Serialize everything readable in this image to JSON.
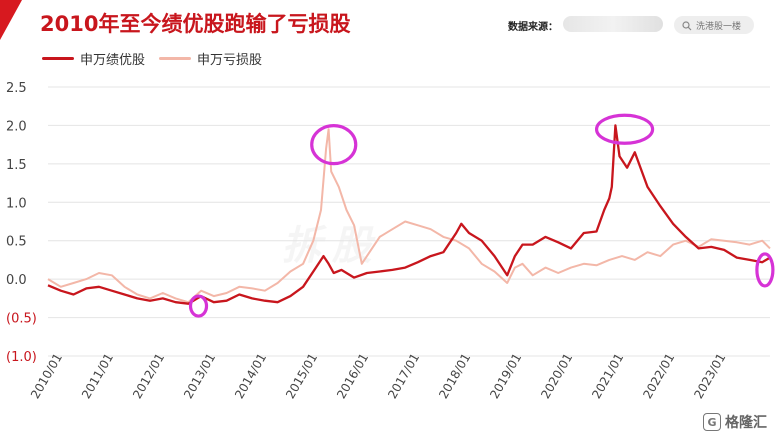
{
  "header": {
    "title": "2010年至今绩优股跑输了亏损股",
    "source_label": "数据来源：",
    "search_text": "洗港股一楼"
  },
  "brand": {
    "name": "格隆汇",
    "badge": "G"
  },
  "watermark": "拆股",
  "colors": {
    "accent": "#c8161d",
    "series1": "#c8161d",
    "series2": "#f3b7a8",
    "marker": "#d633d6"
  },
  "chart_data": {
    "type": "line",
    "title": "2010年至今绩优股跑输了亏损股",
    "xlabel": "",
    "ylabel": "",
    "ylim": [
      -1.0,
      2.5
    ],
    "yticks": [
      2.5,
      2.0,
      1.5,
      1.0,
      0.5,
      0.0,
      -0.5,
      -1.0
    ],
    "ytick_labels": [
      "2.5",
      "2.0",
      "1.5",
      "1.0",
      "0.5",
      "0.0",
      "(0.5)",
      "(1.0)"
    ],
    "xlim": [
      2010.0,
      2024.15
    ],
    "xticks": [
      "2010/01",
      "2011/01",
      "2012/01",
      "2013/01",
      "2014/01",
      "2015/01",
      "2016/01",
      "2017/01",
      "2018/01",
      "2019/01",
      "2020/01",
      "2021/01",
      "2022/01",
      "2023/01"
    ],
    "legend_position": "top-left",
    "grid": true,
    "series": [
      {
        "name": "申万绩优股",
        "x": [
          2010.0,
          2010.25,
          2010.5,
          2010.75,
          2011.0,
          2011.25,
          2011.5,
          2011.75,
          2012.0,
          2012.25,
          2012.5,
          2012.75,
          2013.0,
          2013.25,
          2013.5,
          2013.75,
          2014.0,
          2014.25,
          2014.5,
          2014.75,
          2015.0,
          2015.25,
          2015.4,
          2015.5,
          2015.6,
          2015.75,
          2016.0,
          2016.25,
          2016.5,
          2016.75,
          2017.0,
          2017.25,
          2017.5,
          2017.75,
          2018.0,
          2018.1,
          2018.25,
          2018.5,
          2018.75,
          2019.0,
          2019.15,
          2019.3,
          2019.5,
          2019.75,
          2020.0,
          2020.25,
          2020.5,
          2020.75,
          2020.9,
          2021.0,
          2021.05,
          2021.12,
          2021.2,
          2021.35,
          2021.5,
          2021.75,
          2022.0,
          2022.25,
          2022.5,
          2022.75,
          2023.0,
          2023.25,
          2023.5,
          2023.75,
          2024.0,
          2024.15
        ],
        "y": [
          -0.08,
          -0.15,
          -0.2,
          -0.12,
          -0.1,
          -0.15,
          -0.2,
          -0.25,
          -0.28,
          -0.25,
          -0.3,
          -0.32,
          -0.22,
          -0.3,
          -0.28,
          -0.2,
          -0.25,
          -0.28,
          -0.3,
          -0.22,
          -0.1,
          0.15,
          0.3,
          0.2,
          0.08,
          0.12,
          0.02,
          0.08,
          0.1,
          0.12,
          0.15,
          0.22,
          0.3,
          0.35,
          0.6,
          0.72,
          0.6,
          0.5,
          0.3,
          0.05,
          0.3,
          0.45,
          0.45,
          0.55,
          0.48,
          0.4,
          0.6,
          0.62,
          0.9,
          1.05,
          1.2,
          2.0,
          1.6,
          1.45,
          1.65,
          1.2,
          0.95,
          0.72,
          0.55,
          0.4,
          0.42,
          0.38,
          0.28,
          0.25,
          0.22,
          0.28
        ]
      },
      {
        "name": "申万亏损股",
        "x": [
          2010.0,
          2010.25,
          2010.5,
          2010.75,
          2011.0,
          2011.25,
          2011.5,
          2011.75,
          2012.0,
          2012.25,
          2012.5,
          2012.75,
          2013.0,
          2013.25,
          2013.5,
          2013.75,
          2014.0,
          2014.25,
          2014.5,
          2014.75,
          2015.0,
          2015.2,
          2015.35,
          2015.45,
          2015.5,
          2015.55,
          2015.7,
          2015.85,
          2016.0,
          2016.15,
          2016.3,
          2016.5,
          2016.75,
          2017.0,
          2017.25,
          2017.5,
          2017.75,
          2018.0,
          2018.25,
          2018.5,
          2018.75,
          2019.0,
          2019.15,
          2019.3,
          2019.5,
          2019.75,
          2020.0,
          2020.25,
          2020.5,
          2020.75,
          2021.0,
          2021.25,
          2021.5,
          2021.75,
          2022.0,
          2022.25,
          2022.5,
          2022.75,
          2023.0,
          2023.25,
          2023.5,
          2023.75,
          2024.0,
          2024.15
        ],
        "y": [
          0.0,
          -0.1,
          -0.05,
          0.0,
          0.08,
          0.05,
          -0.1,
          -0.2,
          -0.25,
          -0.18,
          -0.25,
          -0.3,
          -0.15,
          -0.22,
          -0.18,
          -0.1,
          -0.12,
          -0.15,
          -0.05,
          0.1,
          0.2,
          0.5,
          0.9,
          1.7,
          1.95,
          1.4,
          1.2,
          0.9,
          0.7,
          0.2,
          0.35,
          0.55,
          0.65,
          0.75,
          0.7,
          0.65,
          0.55,
          0.5,
          0.4,
          0.2,
          0.1,
          -0.05,
          0.15,
          0.2,
          0.05,
          0.15,
          0.08,
          0.15,
          0.2,
          0.18,
          0.25,
          0.3,
          0.25,
          0.35,
          0.3,
          0.45,
          0.5,
          0.42,
          0.52,
          0.5,
          0.48,
          0.45,
          0.5,
          0.4
        ]
      }
    ],
    "annotations": [
      {
        "shape": "ellipse",
        "x": 2015.6,
        "y": 1.75,
        "note": "circle"
      },
      {
        "shape": "ellipse",
        "x": 2021.3,
        "y": 1.95,
        "note": "circle"
      },
      {
        "shape": "ellipse",
        "x": 2012.95,
        "y": -0.35,
        "note": "circle"
      },
      {
        "shape": "ellipse",
        "x": 2024.05,
        "y": 0.12,
        "note": "circle"
      }
    ]
  }
}
